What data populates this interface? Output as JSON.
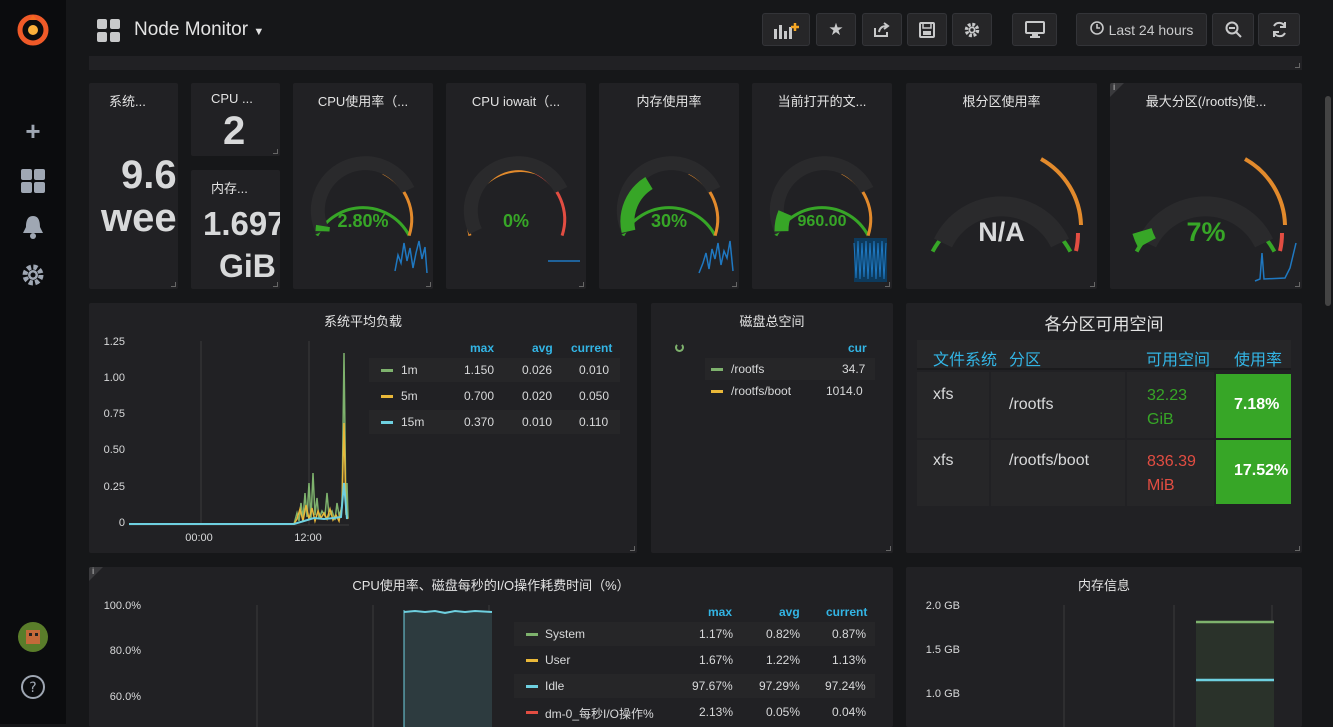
{
  "topbar": {
    "title": "Node Monitor",
    "time_range": "Last 24 hours"
  },
  "colors": {
    "green": "#37a627",
    "orange": "#e28a2c",
    "red": "#e24d42",
    "blue": "#33b5e5",
    "panel": "#212124"
  },
  "stats": {
    "uptime": {
      "title": "系统...",
      "value_line1": "9.6",
      "value_line2": "wee"
    },
    "cpu_cores": {
      "title": "CPU ...",
      "value": "2"
    },
    "memory": {
      "title": "内存...",
      "value_line1": "1.697",
      "value_line2": "GiB"
    }
  },
  "gauges": [
    {
      "title": "CPU使用率（...",
      "value": "2.80%",
      "fraction": 0.028
    },
    {
      "title": "CPU iowait（...",
      "value": "0%",
      "fraction": 0.0
    },
    {
      "title": "内存使用率",
      "value": "30%",
      "fraction": 0.3
    },
    {
      "title": "当前打开的文...",
      "value": "960.00",
      "fraction": 0.1
    },
    {
      "title": "根分区使用率",
      "value": "N/A",
      "fraction": 0.0
    },
    {
      "title": "最大分区(/rootfs)使...",
      "value": "7%",
      "fraction": 0.07
    }
  ],
  "load": {
    "title": "系统平均负载",
    "headers": {
      "max": "max",
      "avg": "avg",
      "current": "current"
    },
    "rows": [
      {
        "name": "1m",
        "color": "#7eb26d",
        "max": "1.150",
        "avg": "0.026",
        "current": "0.010"
      },
      {
        "name": "5m",
        "color": "#eab839",
        "max": "0.700",
        "avg": "0.020",
        "current": "0.050"
      },
      {
        "name": "15m",
        "color": "#6ed0e0",
        "max": "0.370",
        "avg": "0.010",
        "current": "0.110"
      }
    ],
    "yticks": [
      "1.25",
      "1.00",
      "0.75",
      "0.50",
      "0.25",
      "0"
    ],
    "xticks": [
      "00:00",
      "12:00"
    ]
  },
  "disk": {
    "title": "磁盘总空间",
    "header": "cur",
    "rows": [
      {
        "name": "/rootfs",
        "color": "#7eb26d",
        "value": "34.7"
      },
      {
        "name": "/rootfs/boot",
        "color": "#eab839",
        "value": "1014.0"
      }
    ]
  },
  "partitions": {
    "title": "各分区可用空间",
    "headers": {
      "fs": "文件系统",
      "part": "分区",
      "free": "可用空间",
      "usage": "使用率"
    },
    "rows": [
      {
        "fs": "xfs",
        "part": "/rootfs",
        "free_value": "32.23",
        "free_unit": "GiB",
        "free_color": "#37a627",
        "usage": "7.18%"
      },
      {
        "fs": "xfs",
        "part": "/rootfs/boot",
        "free_value": "836.39",
        "free_unit": "MiB",
        "free_color": "#e24d42",
        "usage": "17.52%"
      }
    ]
  },
  "cpuio": {
    "title": "CPU使用率、磁盘每秒的I/O操作耗费时间（%）",
    "headers": {
      "max": "max",
      "avg": "avg",
      "current": "current"
    },
    "yticks": [
      "100.0%",
      "80.0%",
      "60.0%"
    ],
    "rows": [
      {
        "name": "System",
        "color": "#7eb26d",
        "max": "1.17%",
        "avg": "0.82%",
        "current": "0.87%"
      },
      {
        "name": "User",
        "color": "#eab839",
        "max": "1.67%",
        "avg": "1.22%",
        "current": "1.13%"
      },
      {
        "name": "Idle",
        "color": "#6ed0e0",
        "max": "97.67%",
        "avg": "97.29%",
        "current": "97.24%"
      },
      {
        "name": "dm-0_每秒I/O操作%",
        "color": "#e24d42",
        "max": "2.13%",
        "avg": "0.05%",
        "current": "0.04%"
      }
    ]
  },
  "meminfo": {
    "title": "内存信息",
    "yticks": [
      "2.0 GB",
      "1.5 GB",
      "1.0 GB"
    ]
  }
}
